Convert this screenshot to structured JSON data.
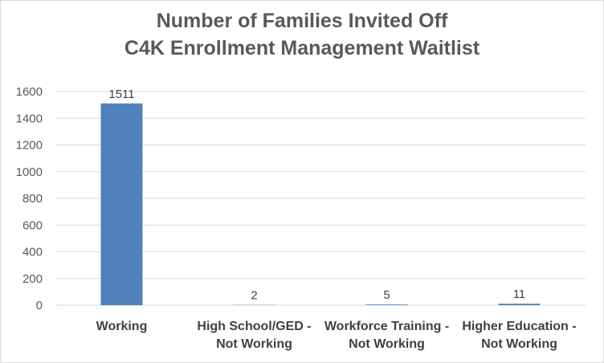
{
  "chart_data": {
    "type": "bar",
    "title_lines": [
      "Number of Families Invited Off",
      "C4K Enrollment Management Waitlist"
    ],
    "categories": [
      [
        "Working"
      ],
      [
        "High School/GED -",
        "Not Working"
      ],
      [
        "Workforce Training -",
        "Not Working"
      ],
      [
        "Higher Education -",
        "Not Working"
      ]
    ],
    "values": [
      1511,
      2,
      5,
      11
    ],
    "data_labels": [
      "1511",
      "2",
      "5",
      "11"
    ],
    "ylim": [
      0,
      1600
    ],
    "yticks": [
      0,
      200,
      400,
      600,
      800,
      1000,
      1200,
      1400,
      1600
    ],
    "grid": true,
    "legend": "none",
    "bar_color": "#4f81bd",
    "grid_color": "#d9d9d9",
    "title_color": "#595959"
  }
}
